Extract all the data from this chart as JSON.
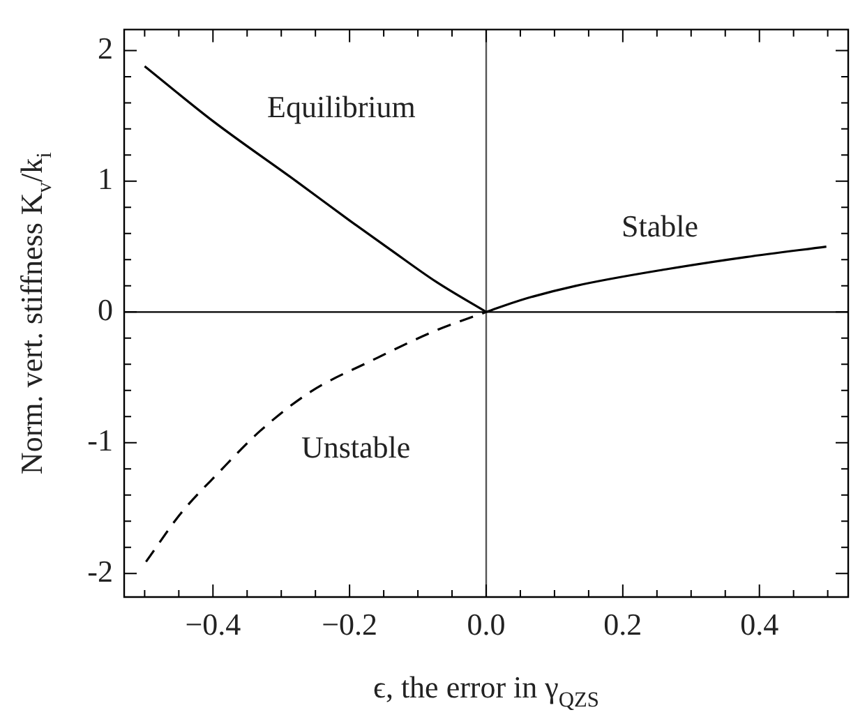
{
  "chart_data": {
    "type": "line",
    "xlabel": "ϵ, the error in γ$_{QZS}$",
    "ylabel": "Norm. vert. stiffness K$_{v}$/k$_{i}$",
    "xlim": [
      -0.53,
      0.53
    ],
    "ylim": [
      -2.18,
      2.16
    ],
    "xticks": [
      {
        "value": -0.5,
        "label": null
      },
      {
        "value": -0.45,
        "label": null
      },
      {
        "value": -0.4,
        "label": "−0.4"
      },
      {
        "value": -0.35,
        "label": null
      },
      {
        "value": -0.3,
        "label": null
      },
      {
        "value": -0.25,
        "label": null
      },
      {
        "value": -0.2,
        "label": "−0.2"
      },
      {
        "value": -0.15,
        "label": null
      },
      {
        "value": -0.1,
        "label": null
      },
      {
        "value": -0.05,
        "label": null
      },
      {
        "value": 0,
        "label": "0.0"
      },
      {
        "value": 0.05,
        "label": null
      },
      {
        "value": 0.1,
        "label": null
      },
      {
        "value": 0.15,
        "label": null
      },
      {
        "value": 0.2,
        "label": "0.2"
      },
      {
        "value": 0.25,
        "label": null
      },
      {
        "value": 0.3,
        "label": null
      },
      {
        "value": 0.35,
        "label": null
      },
      {
        "value": 0.4,
        "label": "0.4"
      },
      {
        "value": 0.45,
        "label": null
      },
      {
        "value": 0.5,
        "label": null
      }
    ],
    "yticks": [
      {
        "value": -2,
        "label": "-2"
      },
      {
        "value": -1.8,
        "label": null
      },
      {
        "value": -1.6,
        "label": null
      },
      {
        "value": -1.4,
        "label": null
      },
      {
        "value": -1.2,
        "label": null
      },
      {
        "value": -1,
        "label": "-1"
      },
      {
        "value": -0.8,
        "label": null
      },
      {
        "value": -0.6,
        "label": null
      },
      {
        "value": -0.4,
        "label": null
      },
      {
        "value": -0.2,
        "label": null
      },
      {
        "value": 0,
        "label": "0"
      },
      {
        "value": 0.2,
        "label": null
      },
      {
        "value": 0.4,
        "label": null
      },
      {
        "value": 0.6,
        "label": null
      },
      {
        "value": 0.8,
        "label": null
      },
      {
        "value": 1,
        "label": "1"
      },
      {
        "value": 1.2,
        "label": null
      },
      {
        "value": 1.4,
        "label": null
      },
      {
        "value": 1.6,
        "label": null
      },
      {
        "value": 1.8,
        "label": null
      },
      {
        "value": 2,
        "label": "2"
      }
    ],
    "grid": false,
    "legend": false,
    "marker": "none",
    "series": [
      {
        "color": "#000000",
        "line_style": "solid",
        "x": [
          -0.5,
          -0.4,
          -0.278,
          -0.2,
          -0.141,
          -0.073,
          0
        ],
        "values": [
          1.88,
          1.46,
          1.0,
          0.7,
          0.48,
          0.23,
          0
        ]
      },
      {
        "color": "#000000",
        "line_style": "dashed",
        "x": [
          -0.498,
          -0.447,
          -0.392,
          -0.331,
          -0.257,
          -0.167,
          -0.073,
          0
        ],
        "values": [
          -1.91,
          -1.54,
          -1.23,
          -0.91,
          -0.61,
          -0.37,
          -0.14,
          0
        ]
      },
      {
        "color": "#000000",
        "line_style": "solid",
        "x": [
          0,
          0.05,
          0.131,
          0.267,
          0.38,
          0.498
        ],
        "values": [
          0,
          0.09,
          0.2,
          0.33,
          0.42,
          0.5
        ]
      }
    ],
    "ref_lines": [
      {
        "axis": "x",
        "value": 0,
        "color": "#555555"
      },
      {
        "axis": "y",
        "value": 0,
        "color": "#000000"
      }
    ],
    "annotations": [
      "Equilibrium",
      "Stable",
      "Unstable"
    ]
  }
}
